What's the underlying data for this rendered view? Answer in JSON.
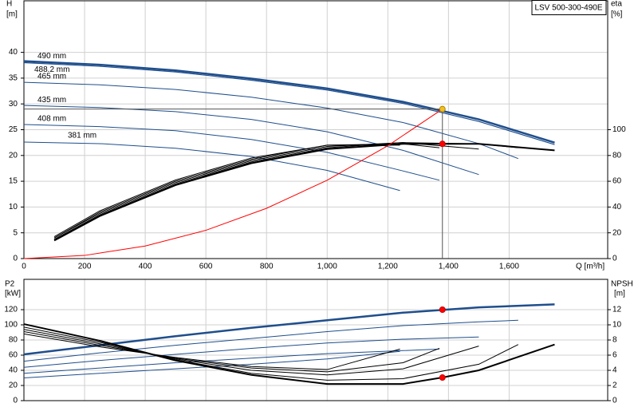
{
  "title": "LSV 500-300-490E",
  "chart_data": [
    {
      "type": "line",
      "ylabel": "H",
      "yunit": "[m]",
      "y2label": "eta",
      "y2unit": "[%]",
      "xlabel": "Q [m³/h]",
      "xlim": [
        0,
        1925
      ],
      "ylim": [
        0,
        50
      ],
      "y2lim": [
        0,
        200
      ],
      "grid": true,
      "xticks": [
        0,
        200,
        400,
        600,
        800,
        {
          "value": 1000,
          "label": "1,000"
        },
        {
          "value": 1200,
          "label": "1,200"
        },
        {
          "value": 1400,
          "label": "1,400"
        },
        {
          "value": 1600,
          "label": "1,600"
        }
      ],
      "yticks": [
        0,
        5,
        10,
        15,
        20,
        25,
        30,
        35,
        40
      ],
      "y2ticks": [
        0,
        20,
        40,
        60,
        80,
        100
      ],
      "series": [
        {
          "name": "490 mm",
          "color": "#1f4e8c",
          "width": 2.5,
          "x": [
            0,
            250,
            500,
            750,
            1000,
            1250,
            1500,
            1750
          ],
          "values": [
            38.3,
            37.6,
            36.5,
            34.9,
            33.0,
            30.4,
            27.0,
            22.5
          ]
        },
        {
          "name": "488.2 mm",
          "color": "#1f4e8c",
          "width": 1.2,
          "x": [
            0,
            250,
            500,
            750,
            1000,
            1250,
            1500,
            1750
          ],
          "values": [
            38.0,
            37.3,
            36.2,
            34.6,
            32.7,
            30.1,
            26.6,
            22.1
          ]
        },
        {
          "name": "465 mm",
          "color": "#1f4e8c",
          "width": 1,
          "x": [
            0,
            250,
            500,
            750,
            1000,
            1250,
            1500,
            1630
          ],
          "values": [
            34.2,
            33.7,
            32.8,
            31.3,
            29.2,
            26.4,
            22.3,
            19.4
          ]
        },
        {
          "name": "435 mm",
          "color": "#1f4e8c",
          "width": 1,
          "x": [
            0,
            250,
            500,
            750,
            1000,
            1250,
            1500
          ],
          "values": [
            29.7,
            29.3,
            28.5,
            27.0,
            24.6,
            21.0,
            16.3
          ]
        },
        {
          "name": "408 mm",
          "color": "#1f4e8c",
          "width": 1,
          "x": [
            0,
            250,
            500,
            750,
            1000,
            1250,
            1370
          ],
          "values": [
            26.0,
            25.6,
            24.8,
            23.1,
            20.6,
            17.0,
            15.2
          ]
        },
        {
          "name": "381 mm",
          "color": "#1f4e8c",
          "width": 1,
          "x": [
            0,
            250,
            500,
            750,
            1000,
            1240
          ],
          "values": [
            22.6,
            22.3,
            21.4,
            19.8,
            17.1,
            13.2
          ]
        },
        {
          "axis": "y2",
          "color": "#000000",
          "width": 2,
          "x": [
            100,
            250,
            500,
            750,
            1000,
            1250,
            1500,
            1750
          ],
          "values": [
            14,
            33,
            57,
            74,
            85,
            89,
            89,
            84
          ]
        },
        {
          "axis": "y2",
          "color": "#000000",
          "width": 1,
          "x": [
            100,
            250,
            500,
            750,
            1000,
            1250,
            1500,
            1630
          ],
          "values": [
            15,
            34,
            58,
            75,
            86,
            90,
            89,
            86
          ]
        },
        {
          "axis": "y2",
          "color": "#000000",
          "width": 1,
          "x": [
            100,
            250,
            500,
            750,
            1000,
            1250,
            1500
          ],
          "values": [
            16,
            35,
            59,
            76,
            87,
            90,
            85
          ]
        },
        {
          "axis": "y2",
          "color": "#000000",
          "width": 1,
          "x": [
            100,
            250,
            500,
            750,
            1000,
            1250,
            1370
          ],
          "values": [
            16,
            36,
            60,
            77,
            88,
            89,
            86
          ]
        },
        {
          "axis": "y2",
          "color": "#000000",
          "width": 1,
          "x": [
            100,
            250,
            500,
            750,
            1000,
            1240
          ],
          "values": [
            17,
            37,
            61,
            78,
            88,
            88
          ]
        },
        {
          "color": "#ff0000",
          "width": 1,
          "x": [
            0,
            200,
            400,
            600,
            800,
            1000,
            1200,
            1380
          ],
          "values": [
            0,
            0.61,
            2.44,
            5.49,
            9.75,
            15.2,
            21.9,
            29.0
          ]
        },
        {
          "style": "point",
          "guide": true,
          "color": "#f0c020",
          "x": [
            1380
          ],
          "values": [
            29.0
          ]
        },
        {
          "style": "point",
          "axis": "y2",
          "color": "#ff0000",
          "x": [
            1380
          ],
          "values": [
            89
          ]
        }
      ]
    },
    {
      "type": "line",
      "ylabel": "P2",
      "yunit": "[kW]",
      "y2label": "NPSH",
      "y2unit": "[m]",
      "xlim": [
        0,
        1925
      ],
      "ylim": [
        0,
        160
      ],
      "y2lim": [
        0,
        16
      ],
      "grid": true,
      "xticks": [
        0,
        200,
        400,
        600,
        800,
        1000,
        1200,
        1400,
        1600
      ],
      "yticks": [
        0,
        20,
        40,
        60,
        80,
        100,
        120
      ],
      "y2ticks": [
        0,
        2,
        4,
        6,
        8,
        10,
        12
      ],
      "series": [
        {
          "color": "#1f4e8c",
          "width": 2.5,
          "x": [
            0,
            250,
            500,
            750,
            1000,
            1250,
            1500,
            1750
          ],
          "values": [
            61,
            73,
            85,
            96,
            106,
            116,
            123,
            127
          ]
        },
        {
          "color": "#1f4e8c",
          "width": 1,
          "x": [
            0,
            250,
            500,
            750,
            1000,
            1250,
            1500,
            1630
          ],
          "values": [
            52,
            63,
            73,
            82,
            91,
            99,
            104,
            106
          ]
        },
        {
          "color": "#1f4e8c",
          "width": 1,
          "x": [
            0,
            250,
            500,
            750,
            1000,
            1250,
            1500
          ],
          "values": [
            44,
            53,
            61,
            69,
            76,
            81,
            84
          ]
        },
        {
          "color": "#1f4e8c",
          "width": 1,
          "x": [
            0,
            250,
            500,
            750,
            1000,
            1250,
            1370
          ],
          "values": [
            36,
            43,
            50,
            56,
            62,
            66,
            68
          ]
        },
        {
          "color": "#1f4e8c",
          "width": 1,
          "x": [
            0,
            250,
            500,
            750,
            1000,
            1240
          ],
          "values": [
            30,
            36,
            42,
            48,
            55,
            65
          ]
        },
        {
          "axis": "y2",
          "color": "#000000",
          "width": 2,
          "x": [
            0,
            250,
            500,
            750,
            1000,
            1250,
            1380,
            1500,
            1750
          ],
          "values": [
            10.1,
            7.9,
            5.3,
            3.4,
            2.2,
            2.2,
            3.05,
            4.0,
            7.4
          ]
        },
        {
          "axis": "y2",
          "color": "#000000",
          "width": 1,
          "x": [
            0,
            250,
            500,
            750,
            1000,
            1250,
            1500,
            1630
          ],
          "values": [
            9.7,
            7.7,
            5.4,
            3.6,
            2.7,
            2.9,
            4.8,
            7.4
          ]
        },
        {
          "axis": "y2",
          "color": "#000000",
          "width": 1,
          "x": [
            0,
            250,
            500,
            750,
            1000,
            1250,
            1500
          ],
          "values": [
            9.4,
            7.5,
            5.5,
            4.0,
            3.4,
            4.2,
            7.2
          ]
        },
        {
          "axis": "y2",
          "color": "#000000",
          "width": 1,
          "x": [
            0,
            250,
            500,
            750,
            1000,
            1250,
            1370
          ],
          "values": [
            9.1,
            7.3,
            5.6,
            4.3,
            3.8,
            5.0,
            6.9
          ]
        },
        {
          "axis": "y2",
          "color": "#000000",
          "width": 1,
          "x": [
            0,
            250,
            500,
            750,
            1000,
            1240
          ],
          "values": [
            8.8,
            7.1,
            5.7,
            4.5,
            4.1,
            6.8
          ]
        },
        {
          "style": "point",
          "color": "#ff0000",
          "x": [
            1380
          ],
          "values": [
            120
          ]
        },
        {
          "style": "point",
          "axis": "y2",
          "color": "#ff0000",
          "x": [
            1380
          ],
          "values": [
            3.05
          ]
        }
      ]
    }
  ]
}
